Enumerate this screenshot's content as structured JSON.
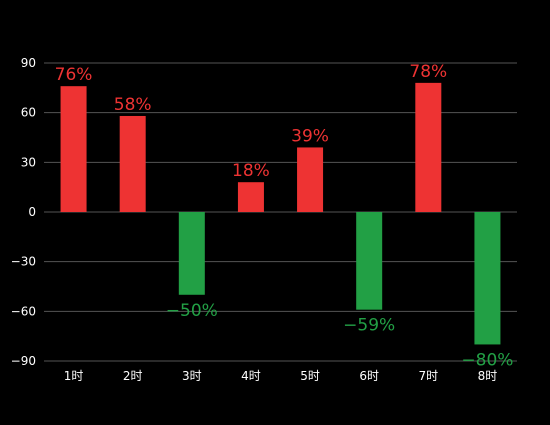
{
  "chart_data": {
    "type": "bar",
    "categories": [
      "1时",
      "2时",
      "3时",
      "4时",
      "5时",
      "6时",
      "7时",
      "8时"
    ],
    "values": [
      76,
      58,
      -50,
      18,
      39,
      -59,
      78,
      -80
    ],
    "data_labels": [
      "76%",
      "58%",
      "−50%",
      "18%",
      "39%",
      "−59%",
      "78%",
      "−80%"
    ],
    "ylim": [
      -90,
      90
    ],
    "yticks": [
      90,
      60,
      30,
      0,
      -30,
      -60,
      -90
    ],
    "ytick_labels": [
      "90",
      "60",
      "30",
      "0",
      "−30",
      "−60",
      "−90"
    ],
    "grid": true,
    "colors": {
      "positive": "#ee3333",
      "negative": "#22a045",
      "grid": "#555555",
      "background": "#000000",
      "text": "#ffffff"
    }
  }
}
